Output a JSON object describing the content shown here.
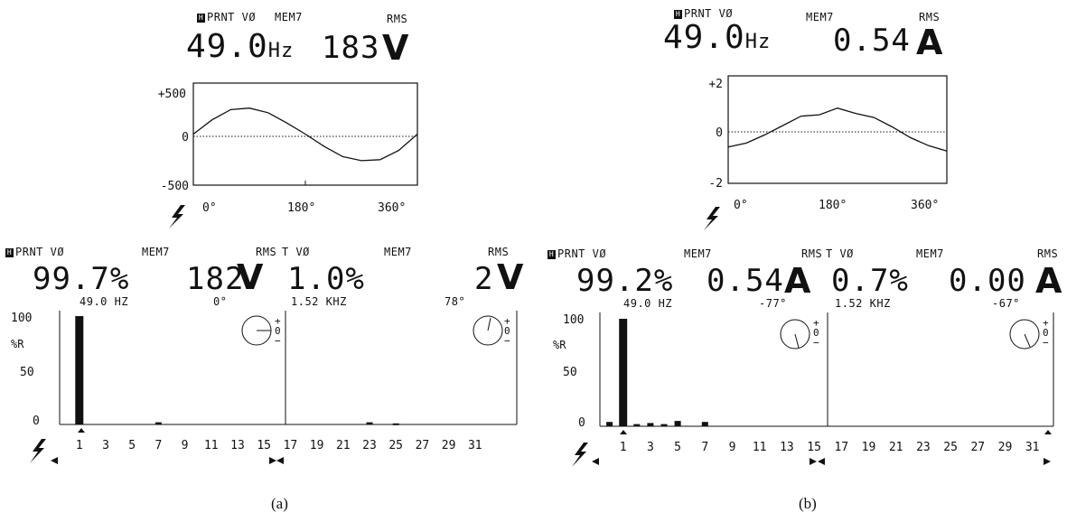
{
  "panels": [
    {
      "id": "a",
      "caption": "(a)",
      "wave": {
        "header": {
          "mode": "PRNT VØ",
          "mem": "MEM7",
          "rms": "RMS"
        },
        "frequency": "49.0",
        "frequency_unit": "Hz",
        "value": "183",
        "value_unit": "V",
        "y_ticks": [
          "+500",
          "0",
          "-500"
        ],
        "x_ticks": [
          "0°",
          "180°",
          "360°"
        ]
      },
      "harmonics": [
        {
          "header": {
            "mode": "PRNT VØ",
            "mem": "MEM7",
            "rms": "RMS"
          },
          "percent": "99.7%",
          "value": "182",
          "unit": "V",
          "sub_freq": "49.0 HZ",
          "phase": "0°",
          "y_ticks": [
            "100",
            "50",
            "0"
          ],
          "y_unit": "%R",
          "x_ticks": [
            "1",
            "3",
            "5",
            "7",
            "9",
            "11",
            "13",
            "15"
          ]
        },
        {
          "header": {
            "mode": "T VØ",
            "mem": "MEM7",
            "rms": "RMS"
          },
          "percent": "1.0%",
          "value": "2",
          "unit": "V",
          "sub_freq": "1.52 KHZ",
          "phase": "78°",
          "x_ticks": [
            "17",
            "19",
            "21",
            "23",
            "25",
            "27",
            "29",
            "31"
          ]
        }
      ],
      "phasor_labels": [
        "+",
        "0",
        "−"
      ]
    },
    {
      "id": "b",
      "caption": "(b)",
      "wave": {
        "header": {
          "mode": "PRNT VØ",
          "mem": "MEM7",
          "rms": "RMS"
        },
        "frequency": "49.0",
        "frequency_unit": "Hz",
        "value": "0.54",
        "value_unit": "A",
        "y_ticks": [
          "+2",
          "0",
          "-2"
        ],
        "x_ticks": [
          "0°",
          "180°",
          "360°"
        ]
      },
      "harmonics": [
        {
          "header": {
            "mode": "PRNT VØ",
            "mem": "MEM7",
            "rms": "RMS"
          },
          "percent": "99.2%",
          "value": "0.54",
          "unit": "A",
          "sub_freq": "49.0 HZ",
          "phase": "-77°",
          "y_ticks": [
            "100",
            "50",
            "0"
          ],
          "y_unit": "%R",
          "x_ticks": [
            "1",
            "3",
            "5",
            "7",
            "9",
            "11",
            "13",
            "15"
          ]
        },
        {
          "header": {
            "mode": "T VØ",
            "mem": "MEM7",
            "rms": "RMS"
          },
          "percent": "0.7%",
          "value": "0.00",
          "unit": "A",
          "sub_freq": "1.52 KHZ",
          "phase": "-67°",
          "x_ticks": [
            "17",
            "19",
            "21",
            "23",
            "25",
            "27",
            "29",
            "31"
          ]
        }
      ],
      "phasor_labels": [
        "+",
        "0",
        "−"
      ]
    }
  ],
  "chart_data": [
    {
      "type": "line",
      "title": "",
      "xlabel": "",
      "ylabel": "",
      "xlim": [
        0,
        360
      ],
      "ylim": [
        -500,
        500
      ],
      "series": [
        {
          "x": [
            0,
            30,
            60,
            90,
            120,
            150,
            180,
            210,
            240,
            270,
            300,
            330,
            360
          ],
          "y": [
            0,
            140,
            240,
            255,
            210,
            110,
            0,
            -120,
            -220,
            -260,
            -250,
            -160,
            0
          ]
        }
      ]
    },
    {
      "type": "bar",
      "title": "",
      "xlabel": "",
      "ylabel": "%R",
      "ylim": [
        0,
        100
      ],
      "categories": [
        1,
        2,
        3,
        4,
        5,
        6,
        7,
        8,
        9,
        10,
        11,
        12,
        13,
        14,
        15,
        16,
        17,
        18,
        19,
        20,
        21,
        22,
        23,
        24,
        25,
        26,
        27,
        28,
        29,
        30,
        31
      ],
      "values": [
        100,
        0,
        0,
        0,
        0,
        0,
        2,
        0,
        0,
        0,
        0,
        0,
        0,
        0,
        0,
        0,
        0,
        0,
        0,
        0,
        0,
        0,
        2,
        0,
        1,
        0,
        0,
        0,
        0,
        0,
        0
      ]
    },
    {
      "type": "line",
      "title": "",
      "xlabel": "",
      "ylabel": "",
      "xlim": [
        0,
        360
      ],
      "ylim": [
        -2,
        2
      ],
      "series": [
        {
          "x": [
            0,
            30,
            60,
            90,
            120,
            150,
            180,
            210,
            240,
            270,
            300,
            330,
            360
          ],
          "y": [
            -0.65,
            -0.5,
            -0.2,
            0.15,
            0.5,
            0.55,
            0.8,
            0.6,
            0.45,
            0.1,
            -0.3,
            -0.6,
            -0.8
          ]
        }
      ]
    },
    {
      "type": "bar",
      "title": "",
      "xlabel": "",
      "ylabel": "%R",
      "ylim": [
        0,
        100
      ],
      "categories": [
        0,
        1,
        2,
        3,
        4,
        5,
        6,
        7,
        8,
        9,
        10,
        11,
        12,
        13,
        14,
        15,
        16,
        17,
        18,
        19,
        20,
        21,
        22,
        23,
        24,
        25,
        26,
        27,
        28,
        29,
        30,
        31
      ],
      "values": [
        4,
        100,
        2,
        3,
        2,
        5,
        0,
        4,
        0,
        0,
        0,
        0,
        0,
        0,
        0,
        0,
        0,
        0,
        0,
        0,
        0,
        0,
        0,
        0,
        0,
        0,
        0,
        0,
        0,
        0,
        0,
        0
      ]
    }
  ]
}
